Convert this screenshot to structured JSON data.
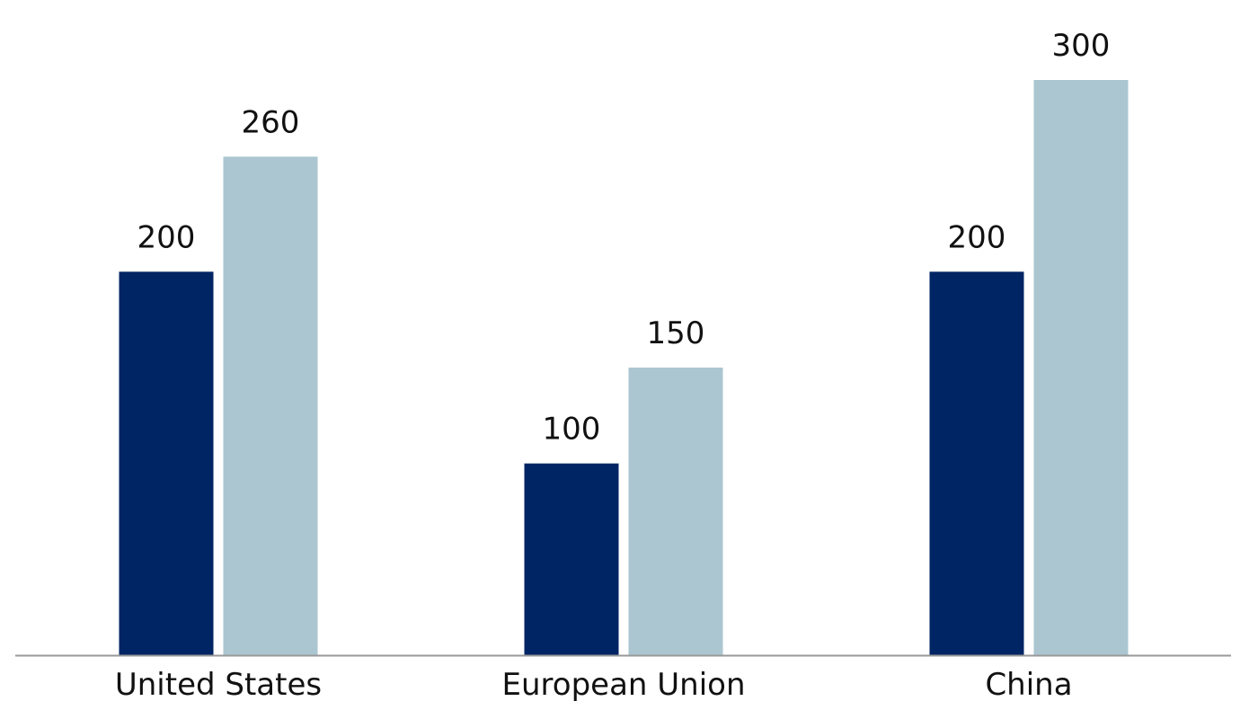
{
  "chart_data": {
    "type": "bar",
    "categories": [
      "United States",
      "European Union",
      "China"
    ],
    "series": [
      {
        "values": [
          200,
          100,
          200
        ],
        "color": "#002564"
      },
      {
        "values": [
          260,
          150,
          300
        ],
        "color": "#abc6d0"
      }
    ],
    "ylim": [
      0,
      300
    ],
    "grid": false,
    "legend": "none",
    "axis_color": "#999999"
  }
}
